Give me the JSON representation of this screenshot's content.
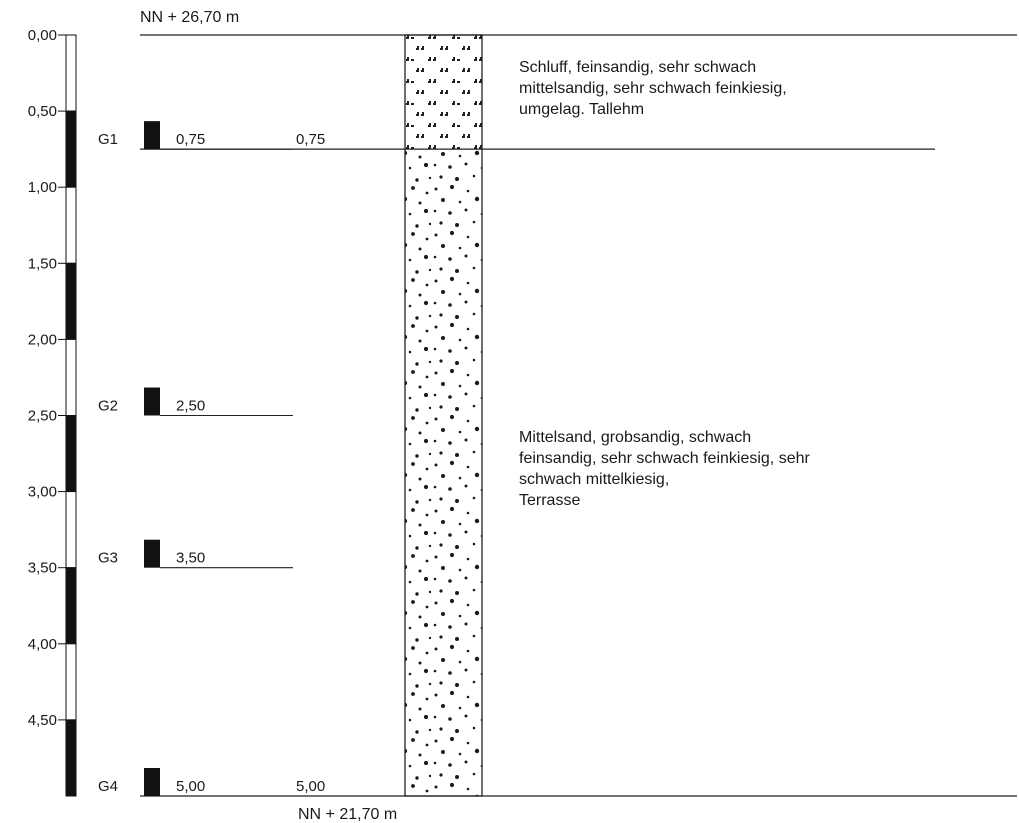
{
  "elevations": {
    "top": "NN + 26,70 m",
    "bottom": "NN + 21,70 m"
  },
  "depth_scale": {
    "min": 0.0,
    "max": 5.0,
    "ticks": [
      {
        "value": 0.0,
        "label": "0,00"
      },
      {
        "value": 0.5,
        "label": "0,50"
      },
      {
        "value": 1.0,
        "label": "1,00"
      },
      {
        "value": 1.5,
        "label": "1,50"
      },
      {
        "value": 2.0,
        "label": "2,00"
      },
      {
        "value": 2.5,
        "label": "2,50"
      },
      {
        "value": 3.0,
        "label": "3,00"
      },
      {
        "value": 3.5,
        "label": "3,50"
      },
      {
        "value": 4.0,
        "label": "4,00"
      },
      {
        "value": 4.5,
        "label": "4,50"
      }
    ]
  },
  "samples": [
    {
      "id": "G1",
      "depth": 0.75,
      "depth_label": "0,75",
      "boundary_label": "0,75"
    },
    {
      "id": "G2",
      "depth": 2.5,
      "depth_label": "2,50",
      "boundary_label": ""
    },
    {
      "id": "G3",
      "depth": 3.5,
      "depth_label": "3,50",
      "boundary_label": ""
    },
    {
      "id": "G4",
      "depth": 5.0,
      "depth_label": "5,00",
      "boundary_label": "5,00"
    }
  ],
  "layers": [
    {
      "from": 0.0,
      "to": 0.75,
      "pattern": "silt",
      "description": [
        "Schluff, feinsandig, sehr schwach",
        "mittelsandig, sehr schwach feinkiesig,",
        "umgelag. Tallehm"
      ]
    },
    {
      "from": 0.75,
      "to": 5.0,
      "pattern": "sand",
      "description": [
        "Mittelsand, grobsandig, schwach",
        "feinsandig, sehr schwach feinkiesig, sehr",
        "schwach mittelkiesig,",
        "Terrasse"
      ]
    }
  ]
}
